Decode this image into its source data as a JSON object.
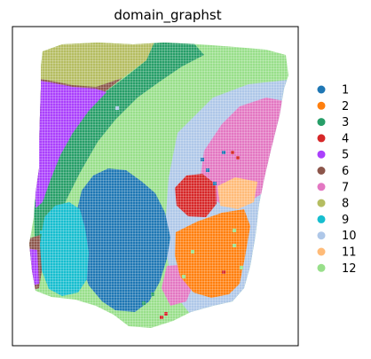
{
  "chart_data": {
    "type": "scatter",
    "title": "domain_graphst",
    "xlabel": "",
    "ylabel": "",
    "grid": false,
    "legend_placement": "right",
    "categories": [
      "1",
      "2",
      "3",
      "4",
      "5",
      "6",
      "7",
      "8",
      "9",
      "10",
      "11",
      "12"
    ],
    "colors": [
      "#1f77b4",
      "#ff7f0e",
      "#279e68",
      "#d62728",
      "#aa40fc",
      "#8c564b",
      "#e377c2",
      "#b5bd61",
      "#17becf",
      "#aec7e8",
      "#ffbb78",
      "#98df8a"
    ]
  }
}
